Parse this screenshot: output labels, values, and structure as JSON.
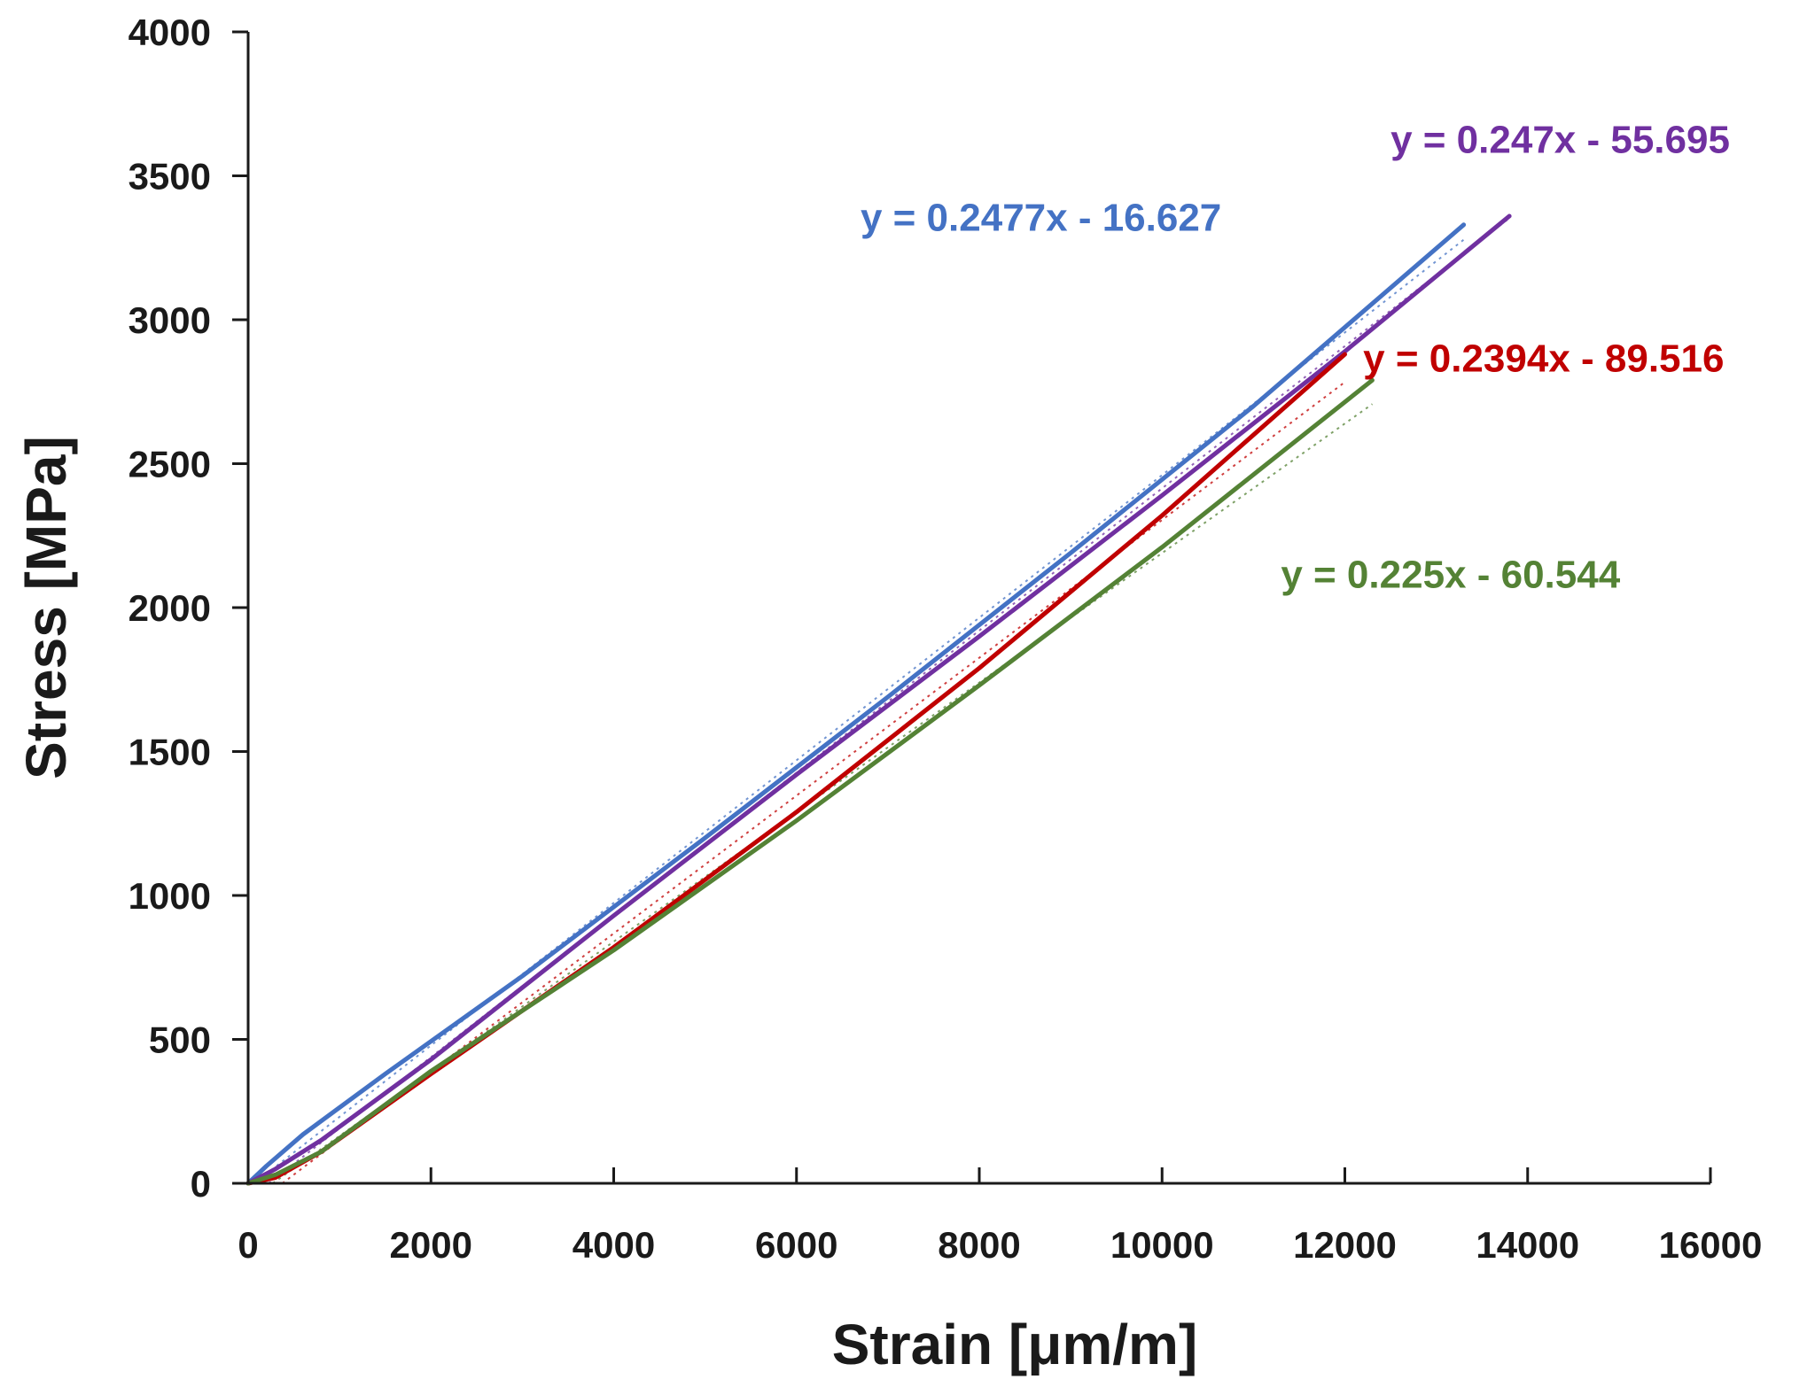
{
  "chart_data": {
    "type": "line",
    "title": "",
    "xlabel": "Strain [μm/m]",
    "ylabel": "Stress [MPa]",
    "xlim": [
      0,
      16000
    ],
    "ylim": [
      0,
      4000
    ],
    "x_ticks": [
      "0",
      "2000",
      "4000",
      "6000",
      "8000",
      "10000",
      "12000",
      "14000",
      "16000"
    ],
    "y_ticks": [
      "0",
      "500",
      "1000",
      "1500",
      "2000",
      "2500",
      "3000",
      "3500",
      "4000"
    ],
    "grid": false,
    "legend": "none",
    "series": [
      {
        "name": "blue",
        "color": "#4472C4",
        "x": [
          0,
          200,
          600,
          1500,
          3000,
          5000,
          7000,
          9000,
          11000,
          13300
        ],
        "y": [
          0,
          60,
          170,
          380,
          720,
          1200,
          1690,
          2190,
          2700,
          3330
        ],
        "trendline": {
          "slope": 0.2477,
          "intercept": -16.627,
          "label": "y = 0.2477x - 16.627"
        }
      },
      {
        "name": "purple",
        "color": "#7030A0",
        "x": [
          0,
          300,
          800,
          2000,
          4000,
          6000,
          8000,
          10000,
          12000,
          13800
        ],
        "y": [
          0,
          50,
          150,
          430,
          930,
          1420,
          1900,
          2390,
          2890,
          3360
        ],
        "trendline": {
          "slope": 0.247,
          "intercept": -55.695,
          "label": "y = 0.247x - 55.695"
        }
      },
      {
        "name": "red",
        "color": "#C00000",
        "x": [
          0,
          300,
          800,
          2000,
          4000,
          6000,
          8000,
          10000,
          12000
        ],
        "y": [
          0,
          20,
          110,
          380,
          820,
          1290,
          1790,
          2320,
          2880
        ],
        "trendline": {
          "slope": 0.2394,
          "intercept": -89.516,
          "label": "y = 0.2394x - 89.516"
        }
      },
      {
        "name": "green",
        "color": "#548235",
        "x": [
          0,
          300,
          800,
          2000,
          4000,
          6000,
          8000,
          10000,
          12300
        ],
        "y": [
          0,
          30,
          110,
          390,
          810,
          1260,
          1730,
          2210,
          2790
        ],
        "trendline": {
          "slope": 0.225,
          "intercept": -60.544,
          "label": "y = 0.225x - 60.544"
        }
      }
    ],
    "annotations": [
      {
        "text": "y = 0.2477x - 16.627",
        "color": "#4472C4",
        "x": 6700,
        "y": 3310
      },
      {
        "text": "y = 0.247x - 55.695",
        "color": "#7030A0",
        "x": 12500,
        "y": 3580
      },
      {
        "text": "y = 0.2394x - 89.516",
        "color": "#C00000",
        "x": 12200,
        "y": 2820
      },
      {
        "text": "y = 0.225x - 60.544",
        "color": "#548235",
        "x": 11300,
        "y": 2070
      }
    ]
  }
}
